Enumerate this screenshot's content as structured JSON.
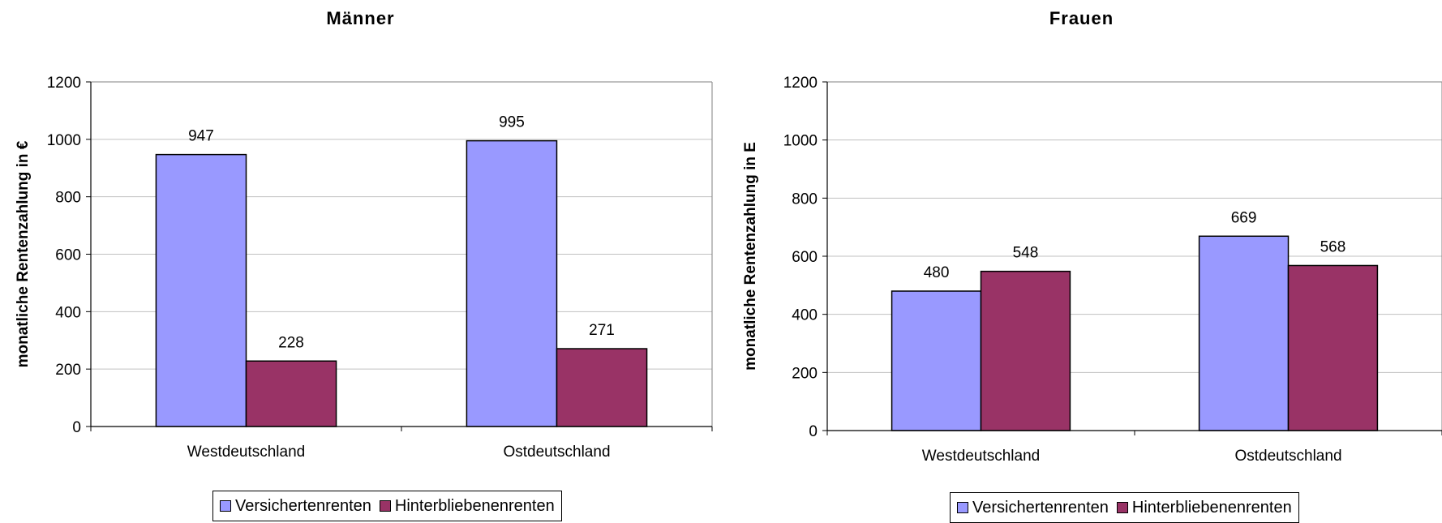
{
  "chart_data": [
    {
      "type": "bar",
      "title": "Männer",
      "ylabel": "monatliche Rentenzahlung in €",
      "xlabel": "",
      "categories": [
        "Westdeutschland",
        "Ostdeutschland"
      ],
      "series": [
        {
          "name": "Versichertenrenten",
          "values": [
            947,
            995
          ],
          "color": "#9999FF"
        },
        {
          "name": "Hinterbliebenenrenten",
          "values": [
            228,
            271
          ],
          "color": "#993366"
        }
      ],
      "ylim": [
        0,
        1200
      ],
      "yticks": [
        "0",
        "200",
        "400",
        "600",
        "800",
        "1000",
        "1200"
      ],
      "grid": true,
      "legend": "bottom"
    },
    {
      "type": "bar",
      "title": "Frauen",
      "ylabel": "monatliche Rentenzahlung in E",
      "xlabel": "",
      "categories": [
        "Westdeutschland",
        "Ostdeutschland"
      ],
      "series": [
        {
          "name": "Versichertenrenten",
          "values": [
            480,
            669
          ],
          "color": "#9999FF"
        },
        {
          "name": "Hinterbliebenenrenten",
          "values": [
            548,
            568
          ],
          "color": "#993366"
        }
      ],
      "ylim": [
        0,
        1200
      ],
      "yticks": [
        "0",
        "200",
        "400",
        "600",
        "800",
        "1000",
        "1200"
      ],
      "grid": true,
      "legend": "bottom"
    }
  ]
}
